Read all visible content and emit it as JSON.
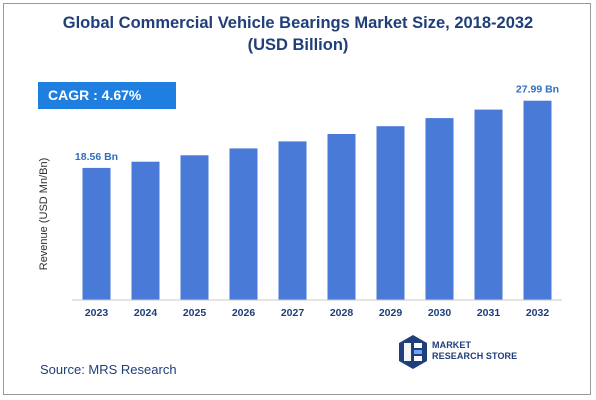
{
  "title_line1": "Global Commercial Vehicle Bearings Market Size, 2018-2032",
  "title_line2": "(USD Billion)",
  "cagr": "CAGR : 4.67%",
  "source": "Source: MRS Research",
  "logo": {
    "line1": "MARKET",
    "line2": "RESEARCH STORE",
    "icon": "mrs-logo-icon"
  },
  "colors": {
    "bar": "#4a7ad8",
    "title": "#1f3e7a",
    "cagr_box": "#1f7fe0",
    "label": "#2f6fbf"
  },
  "chart_data": {
    "type": "bar",
    "categories": [
      "2023",
      "2024",
      "2025",
      "2026",
      "2027",
      "2028",
      "2029",
      "2030",
      "2031",
      "2032"
    ],
    "values": [
      18.56,
      19.43,
      20.33,
      21.29,
      22.28,
      23.32,
      24.41,
      25.55,
      26.74,
      27.99
    ],
    "data_labels": [
      {
        "index": 0,
        "text": "18.56 Bn"
      },
      {
        "index": 9,
        "text": "27.99 Bn"
      }
    ],
    "ylabel": "Revenue (USD Mn/Bn)",
    "xlabel": "",
    "ylim": [
      0,
      30
    ],
    "grid": false,
    "legend": "none"
  }
}
